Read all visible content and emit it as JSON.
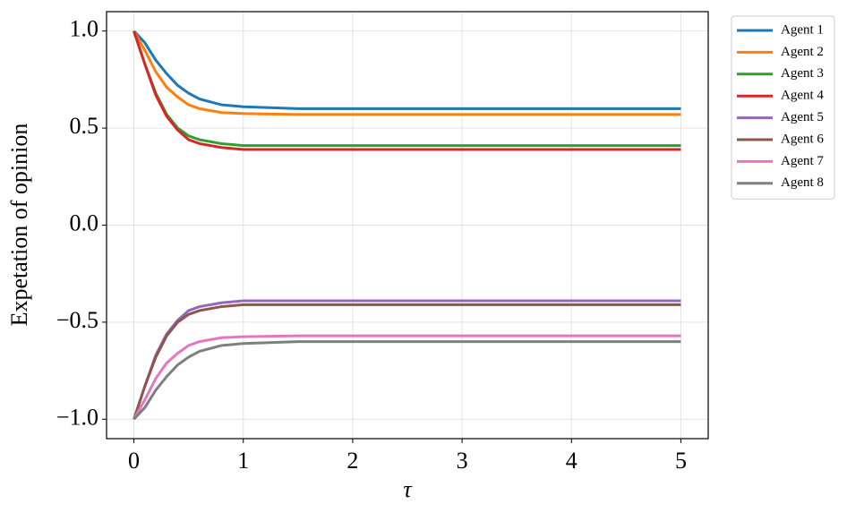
{
  "chart_data": {
    "type": "line",
    "x_label": "τ",
    "y_label": "Expetation of opinion",
    "x": [
      0,
      0.1,
      0.2,
      0.3,
      0.4,
      0.5,
      0.6,
      0.8,
      1.0,
      1.5,
      2,
      3,
      4,
      5
    ],
    "series": [
      {
        "name": "Agent 1",
        "color": "#1f77b4",
        "values": [
          1,
          0.94,
          0.85,
          0.78,
          0.72,
          0.68,
          0.65,
          0.62,
          0.61,
          0.6,
          0.6,
          0.6,
          0.6,
          0.6
        ]
      },
      {
        "name": "Agent 2",
        "color": "#ff7f0e",
        "values": [
          1,
          0.9,
          0.79,
          0.71,
          0.66,
          0.62,
          0.6,
          0.58,
          0.575,
          0.57,
          0.57,
          0.57,
          0.57,
          0.57
        ]
      },
      {
        "name": "Agent 3",
        "color": "#2ca02c",
        "values": [
          1,
          0.83,
          0.68,
          0.57,
          0.5,
          0.46,
          0.44,
          0.42,
          0.41,
          0.41,
          0.41,
          0.41,
          0.41,
          0.41
        ]
      },
      {
        "name": "Agent 4",
        "color": "#d62728",
        "values": [
          1,
          0.83,
          0.67,
          0.56,
          0.49,
          0.44,
          0.42,
          0.4,
          0.39,
          0.39,
          0.39,
          0.39,
          0.39,
          0.39
        ]
      },
      {
        "name": "Agent 5",
        "color": "#9467bd",
        "values": [
          -1,
          -0.83,
          -0.67,
          -0.56,
          -0.49,
          -0.44,
          -0.42,
          -0.4,
          -0.39,
          -0.39,
          -0.39,
          -0.39,
          -0.39,
          -0.39
        ]
      },
      {
        "name": "Agent 6",
        "color": "#8c564b",
        "values": [
          -1,
          -0.83,
          -0.68,
          -0.57,
          -0.5,
          -0.46,
          -0.44,
          -0.42,
          -0.41,
          -0.41,
          -0.41,
          -0.41,
          -0.41,
          -0.41
        ]
      },
      {
        "name": "Agent 7",
        "color": "#e377c2",
        "values": [
          -1,
          -0.9,
          -0.79,
          -0.71,
          -0.66,
          -0.62,
          -0.6,
          -0.58,
          -0.575,
          -0.57,
          -0.57,
          -0.57,
          -0.57,
          -0.57
        ]
      },
      {
        "name": "Agent 8",
        "color": "#7f7f7f",
        "values": [
          -1,
          -0.94,
          -0.85,
          -0.78,
          -0.72,
          -0.68,
          -0.65,
          -0.62,
          -0.61,
          -0.6,
          -0.6,
          -0.6,
          -0.6,
          -0.6
        ]
      }
    ],
    "xlim": [
      -0.25,
      5.25
    ],
    "ylim": [
      -1.1,
      1.1
    ],
    "xticks": [
      0,
      1,
      2,
      3,
      4,
      5
    ],
    "yticks": [
      {
        "value": -1,
        "label": "−1.0"
      },
      {
        "value": -0.5,
        "label": "−0.5"
      },
      {
        "value": 0,
        "label": "0.0"
      },
      {
        "value": 0.5,
        "label": "0.5"
      },
      {
        "value": 1,
        "label": "1.0"
      }
    ],
    "grid": true,
    "legend": "outside-upper-right"
  }
}
